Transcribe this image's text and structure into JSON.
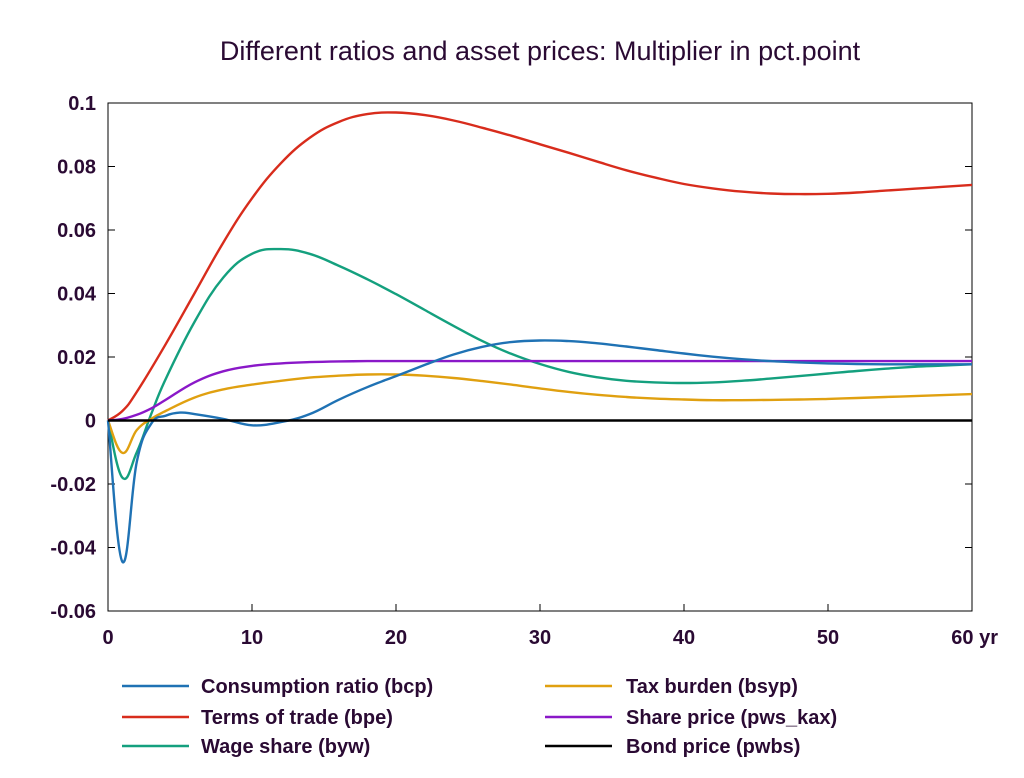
{
  "chart_data": {
    "type": "line",
    "title": "Different ratios and asset prices: Multiplier in pct.point",
    "xlabel": "",
    "ylabel": "",
    "xlim": [
      0,
      60
    ],
    "ylim": [
      -0.06,
      0.1
    ],
    "x_ticks": [
      0,
      10,
      20,
      30,
      40,
      50,
      60
    ],
    "x_tick_labels": [
      "0",
      "10",
      "20",
      "30",
      "40",
      "50",
      "60 yr"
    ],
    "y_ticks": [
      0.1,
      0.08,
      0.06,
      0.04,
      0.02,
      0,
      -0.02,
      -0.04,
      -0.06
    ],
    "y_tick_labels": [
      "0.1",
      "0.08",
      "0.06",
      "0.04",
      "0.02",
      "0",
      "-0.02",
      "-0.04",
      "-0.06"
    ],
    "grid": false,
    "legend_position": "bottom",
    "series": [
      {
        "name": "Consumption ratio (bcp)",
        "color": "#1f72b4",
        "x": [
          0,
          1,
          2,
          3,
          4,
          5,
          6,
          8,
          10,
          12,
          14,
          16,
          18,
          20,
          22,
          24,
          26,
          28,
          30,
          32,
          34,
          36,
          38,
          40,
          42,
          44,
          46,
          48,
          50,
          52,
          54,
          56,
          58,
          60
        ],
        "values": [
          0,
          -0.0445,
          -0.013,
          -0.001,
          0.0015,
          0.0025,
          0.002,
          0.0005,
          -0.0015,
          -0.0005,
          0.002,
          0.0065,
          0.0105,
          0.014,
          0.0175,
          0.0208,
          0.0232,
          0.0247,
          0.0252,
          0.025,
          0.0243,
          0.0233,
          0.0222,
          0.0211,
          0.0201,
          0.0193,
          0.0187,
          0.0183,
          0.018,
          0.0178,
          0.0177,
          0.0177,
          0.0177,
          0.0177
        ]
      },
      {
        "name": "Terms of trade (bpe)",
        "color": "#d82c1c",
        "x": [
          0,
          1,
          2,
          4,
          6,
          8,
          10,
          12,
          14,
          16,
          18,
          20,
          22,
          24,
          26,
          28,
          30,
          32,
          34,
          36,
          38,
          40,
          42,
          44,
          46,
          48,
          50,
          52,
          54,
          56,
          58,
          60
        ],
        "values": [
          0,
          0.003,
          0.009,
          0.024,
          0.04,
          0.056,
          0.07,
          0.081,
          0.089,
          0.094,
          0.0965,
          0.097,
          0.0962,
          0.0945,
          0.0922,
          0.0897,
          0.087,
          0.0843,
          0.0815,
          0.0788,
          0.0765,
          0.0745,
          0.0731,
          0.0721,
          0.0715,
          0.0713,
          0.0714,
          0.0718,
          0.0724,
          0.073,
          0.0736,
          0.0742
        ]
      },
      {
        "name": "Wage share (byw)",
        "color": "#14a07e",
        "x": [
          0,
          1,
          2,
          3,
          4,
          6,
          8,
          10,
          12,
          14,
          16,
          18,
          20,
          22,
          24,
          26,
          28,
          30,
          32,
          34,
          36,
          38,
          40,
          42,
          44,
          46,
          48,
          50,
          52,
          54,
          56,
          58,
          60
        ],
        "values": [
          0,
          -0.018,
          -0.01,
          0.002,
          0.013,
          0.031,
          0.045,
          0.0525,
          0.054,
          0.0525,
          0.0488,
          0.0445,
          0.0398,
          0.0348,
          0.0298,
          0.025,
          0.021,
          0.0178,
          0.0153,
          0.0136,
          0.0125,
          0.012,
          0.0118,
          0.012,
          0.0125,
          0.0132,
          0.014,
          0.0148,
          0.0156,
          0.0163,
          0.0169,
          0.0173,
          0.0177
        ]
      },
      {
        "name": "Tax burden (bsyp)",
        "color": "#e0a010",
        "x": [
          0,
          1,
          2,
          3,
          4,
          6,
          8,
          10,
          12,
          14,
          16,
          18,
          20,
          22,
          24,
          26,
          28,
          30,
          32,
          34,
          36,
          38,
          40,
          42,
          44,
          46,
          48,
          50,
          52,
          54,
          56,
          58,
          60
        ],
        "values": [
          0,
          -0.0102,
          -0.003,
          0.0005,
          0.003,
          0.0072,
          0.0098,
          0.0113,
          0.0125,
          0.0135,
          0.0141,
          0.0145,
          0.0145,
          0.0141,
          0.0134,
          0.0124,
          0.0113,
          0.0101,
          0.009,
          0.0081,
          0.0074,
          0.0069,
          0.0066,
          0.0064,
          0.0064,
          0.0065,
          0.0066,
          0.0068,
          0.0071,
          0.0074,
          0.0077,
          0.008,
          0.0083
        ]
      },
      {
        "name": "Share price (pws_kax)",
        "color": "#8a18c8",
        "x": [
          0,
          1,
          2,
          3,
          4,
          6,
          8,
          10,
          12,
          14,
          16,
          18,
          20,
          25,
          30,
          35,
          40,
          45,
          50,
          55,
          60
        ],
        "values": [
          0,
          0.0005,
          0.0018,
          0.0038,
          0.0065,
          0.012,
          0.0155,
          0.0172,
          0.018,
          0.0184,
          0.0186,
          0.0187,
          0.0187,
          0.0187,
          0.0187,
          0.0187,
          0.0187,
          0.0187,
          0.0187,
          0.0187,
          0.0187
        ]
      },
      {
        "name": "Bond price (pwbs)",
        "color": "#000000",
        "x": [
          0,
          60
        ],
        "values": [
          0,
          0
        ]
      }
    ]
  }
}
